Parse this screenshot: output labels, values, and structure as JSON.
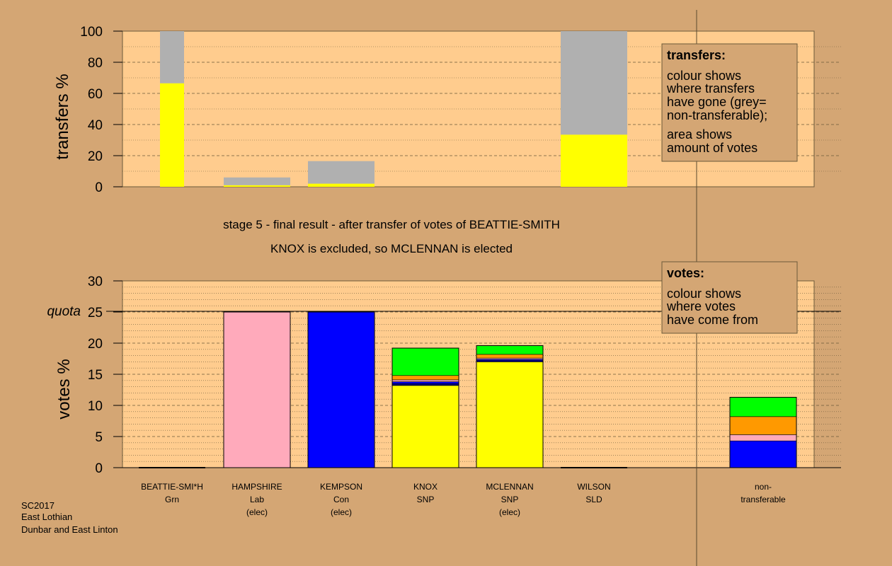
{
  "caption": {
    "line1": "stage 5 - final result - after transfer of votes of BEATTIE-SMITH",
    "line2": "KNOX is excluded, so MCLENNAN is elected"
  },
  "footer": {
    "line1": "SC2017",
    "line2": "East Lothian",
    "line3": "Dunbar and East Linton"
  },
  "colors": {
    "background": "#d4a674",
    "plot_bg": "#ffcc8e",
    "Grn": "#00ff00",
    "Lab": "#ffaabb",
    "Con": "#0000ff",
    "SNP": "#ffff00",
    "SLD": "#ff9900",
    "nontransferable": "#b0b0b0",
    "navy": "#000080"
  },
  "candidates": [
    {
      "name": "BEATTIE-SMI*H",
      "party": "Grn",
      "status": ""
    },
    {
      "name": "HAMPSHIRE",
      "party": "Lab",
      "status": "(elec)"
    },
    {
      "name": "KEMPSON",
      "party": "Con",
      "status": "(elec)"
    },
    {
      "name": "KNOX",
      "party": "SNP",
      "status": ""
    },
    {
      "name": "MCLENNAN",
      "party": "SNP",
      "status": "(elec)"
    },
    {
      "name": "WILSON",
      "party": "SLD",
      "status": ""
    },
    {
      "name": "non-",
      "party": "transferable",
      "status": ""
    }
  ],
  "chart_data": [
    {
      "type": "bar",
      "ylabel": "transfers %",
      "ylim": [
        0,
        100
      ],
      "yticks": [
        0,
        20,
        40,
        60,
        80,
        100
      ],
      "legend": {
        "title": "transfers:",
        "lines": [
          "colour shows",
          "where transfers",
          "have gone (grey=",
          "non-transferable);",
          "area shows",
          "amount of votes"
        ]
      },
      "bars": [
        {
          "candidate": "BEATTIE-SMI*H",
          "stack": [
            {
              "color": "SNP",
              "value": 66.5
            },
            {
              "color": "nontransferable",
              "value": 33.5
            }
          ]
        },
        {
          "candidate": "HAMPSHIRE",
          "stack": [
            {
              "color": "SNP",
              "value": 1
            },
            {
              "color": "nontransferable",
              "value": 5
            }
          ]
        },
        {
          "candidate": "KEMPSON",
          "stack": [
            {
              "color": "SNP",
              "value": 2
            },
            {
              "color": "nontransferable",
              "value": 14.5
            }
          ]
        },
        {
          "candidate": "WILSON",
          "stack": [
            {
              "color": "SNP",
              "value": 33.5
            },
            {
              "color": "nontransferable",
              "value": 66.5
            }
          ]
        }
      ]
    },
    {
      "type": "bar",
      "ylabel": "votes %",
      "ylim": [
        0,
        30
      ],
      "yticks": [
        0,
        5,
        10,
        15,
        20,
        25,
        30
      ],
      "quota": {
        "label": "quota",
        "value": 25
      },
      "legend": {
        "title": "votes:",
        "lines": [
          "colour shows",
          "where votes",
          "have come from"
        ]
      },
      "bars": [
        {
          "candidate": "BEATTIE-SMI*H",
          "stack": []
        },
        {
          "candidate": "HAMPSHIRE",
          "stack": [
            {
              "color": "Lab",
              "value": 25
            }
          ]
        },
        {
          "candidate": "KEMPSON",
          "stack": [
            {
              "color": "Con",
              "value": 25
            }
          ]
        },
        {
          "candidate": "KNOX",
          "stack": [
            {
              "color": "SNP",
              "value": 13.2
            },
            {
              "color": "navy",
              "value": 0.3
            },
            {
              "color": "Con",
              "value": 0.3
            },
            {
              "color": "Lab",
              "value": 0.3
            },
            {
              "color": "SLD",
              "value": 0.7
            },
            {
              "color": "Grn",
              "value": 4.4
            }
          ]
        },
        {
          "candidate": "MCLENNAN",
          "stack": [
            {
              "color": "SNP",
              "value": 17
            },
            {
              "color": "navy",
              "value": 0.2
            },
            {
              "color": "Con",
              "value": 0.2
            },
            {
              "color": "Lab",
              "value": 0.2
            },
            {
              "color": "SLD",
              "value": 0.6
            },
            {
              "color": "Grn",
              "value": 1.4
            }
          ]
        },
        {
          "candidate": "WILSON",
          "stack": []
        },
        {
          "candidate": "non-",
          "stack": [
            {
              "color": "Con",
              "value": 4.3
            },
            {
              "color": "Lab",
              "value": 1
            },
            {
              "color": "SLD",
              "value": 2.9
            },
            {
              "color": "Grn",
              "value": 3.1
            }
          ]
        }
      ]
    }
  ]
}
